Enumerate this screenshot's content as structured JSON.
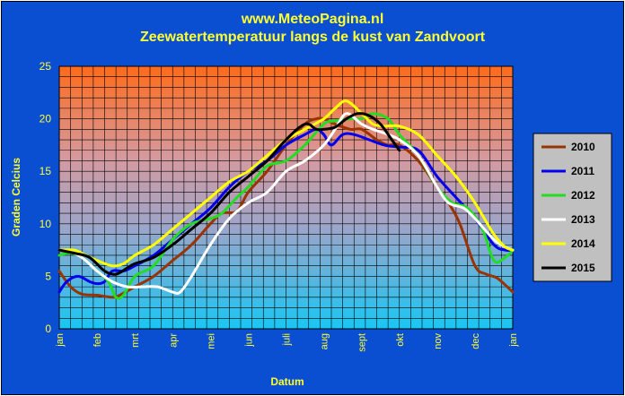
{
  "chart_data": {
    "type": "line",
    "title": "www.MeteoPagina.nl",
    "subtitle": "Zeewatertemperatuur langs de kust van Zandvoort",
    "xlabel": "Datum",
    "ylabel": "Graden Celcius",
    "ylim": [
      0,
      25
    ],
    "yticks": [
      0,
      5,
      10,
      15,
      20,
      25
    ],
    "x_unit": "month (0 = jan, 12 = jan next year)",
    "xlim": [
      0,
      12
    ],
    "month_labels": [
      "jan",
      "feb",
      "mrt",
      "apr",
      "mei",
      "jun",
      "juli",
      "aug",
      "sept",
      "okt",
      "nov",
      "dec",
      "jan"
    ],
    "grid": true,
    "legend_position": "right",
    "series": [
      {
        "name": "2010",
        "color": "#993300",
        "points": [
          [
            0,
            5.5
          ],
          [
            0.3,
            4.0
          ],
          [
            0.6,
            3.3
          ],
          [
            1.0,
            3.2
          ],
          [
            1.4,
            3.0
          ],
          [
            1.6,
            3.2
          ],
          [
            2.0,
            4.0
          ],
          [
            2.5,
            5.0
          ],
          [
            3.0,
            6.5
          ],
          [
            3.5,
            8.0
          ],
          [
            4.0,
            10.0
          ],
          [
            4.3,
            11.0
          ],
          [
            4.7,
            11.2
          ],
          [
            5.0,
            13.0
          ],
          [
            5.5,
            15.0
          ],
          [
            6.0,
            17.5
          ],
          [
            6.5,
            19.5
          ],
          [
            6.8,
            20.0
          ],
          [
            7.0,
            20.0
          ],
          [
            7.3,
            19.5
          ],
          [
            7.7,
            19.0
          ],
          [
            8.0,
            19.0
          ],
          [
            8.4,
            18.0
          ],
          [
            8.7,
            17.5
          ],
          [
            9.0,
            17.5
          ],
          [
            9.5,
            16.0
          ],
          [
            10.0,
            13.5
          ],
          [
            10.3,
            12.0
          ],
          [
            10.6,
            10.0
          ],
          [
            11.0,
            6.0
          ],
          [
            11.3,
            5.2
          ],
          [
            11.6,
            4.8
          ],
          [
            12.0,
            3.5
          ]
        ]
      },
      {
        "name": "2011",
        "color": "#0000ee",
        "points": [
          [
            0,
            3.5
          ],
          [
            0.2,
            4.5
          ],
          [
            0.5,
            5.0
          ],
          [
            0.8,
            4.5
          ],
          [
            1.0,
            4.3
          ],
          [
            1.2,
            4.5
          ],
          [
            1.4,
            5.5
          ],
          [
            1.7,
            5.5
          ],
          [
            2.0,
            6.0
          ],
          [
            2.5,
            7.0
          ],
          [
            3.0,
            8.5
          ],
          [
            3.5,
            10.0
          ],
          [
            4.0,
            11.5
          ],
          [
            4.5,
            13.5
          ],
          [
            5.0,
            15.0
          ],
          [
            5.5,
            16.0
          ],
          [
            6.0,
            17.5
          ],
          [
            6.5,
            18.5
          ],
          [
            6.8,
            19.0
          ],
          [
            7.0,
            18.5
          ],
          [
            7.2,
            17.5
          ],
          [
            7.5,
            18.5
          ],
          [
            7.8,
            18.5
          ],
          [
            8.2,
            18.0
          ],
          [
            8.6,
            17.5
          ],
          [
            9.0,
            17.3
          ],
          [
            9.5,
            17.0
          ],
          [
            10.0,
            14.5
          ],
          [
            10.5,
            12.5
          ],
          [
            11.0,
            10.5
          ],
          [
            11.5,
            8.0
          ],
          [
            11.8,
            7.5
          ],
          [
            12.0,
            7.5
          ]
        ]
      },
      {
        "name": "2012",
        "color": "#22dd22",
        "points": [
          [
            0,
            7.0
          ],
          [
            0.3,
            7.2
          ],
          [
            0.6,
            6.8
          ],
          [
            1.0,
            5.5
          ],
          [
            1.3,
            4.5
          ],
          [
            1.5,
            3.0
          ],
          [
            1.7,
            3.2
          ],
          [
            2.0,
            5.0
          ],
          [
            2.5,
            6.0
          ],
          [
            3.0,
            8.5
          ],
          [
            3.5,
            10.0
          ],
          [
            4.0,
            10.5
          ],
          [
            4.3,
            11.0
          ],
          [
            4.7,
            12.5
          ],
          [
            5.0,
            13.5
          ],
          [
            5.5,
            15.5
          ],
          [
            6.0,
            16.0
          ],
          [
            6.5,
            17.5
          ],
          [
            7.0,
            19.5
          ],
          [
            7.3,
            19.8
          ],
          [
            7.7,
            20.0
          ],
          [
            8.0,
            20.0
          ],
          [
            8.3,
            20.5
          ],
          [
            8.7,
            20.0
          ],
          [
            9.0,
            18.5
          ],
          [
            9.5,
            16.5
          ],
          [
            10.0,
            13.5
          ],
          [
            10.4,
            12.0
          ],
          [
            10.8,
            11.5
          ],
          [
            11.2,
            9.5
          ],
          [
            11.5,
            6.5
          ],
          [
            11.8,
            6.8
          ],
          [
            12.0,
            7.5
          ]
        ]
      },
      {
        "name": "2013",
        "color": "#ffffff",
        "points": [
          [
            0,
            7.5
          ],
          [
            0.4,
            7.2
          ],
          [
            0.7,
            6.5
          ],
          [
            1.0,
            5.5
          ],
          [
            1.4,
            4.5
          ],
          [
            1.8,
            4.0
          ],
          [
            2.2,
            4.0
          ],
          [
            2.6,
            4.0
          ],
          [
            3.0,
            3.5
          ],
          [
            3.2,
            3.5
          ],
          [
            3.5,
            5.0
          ],
          [
            4.0,
            8.0
          ],
          [
            4.5,
            10.5
          ],
          [
            5.0,
            12.0
          ],
          [
            5.5,
            13.0
          ],
          [
            6.0,
            15.0
          ],
          [
            6.5,
            16.0
          ],
          [
            7.0,
            17.5
          ],
          [
            7.3,
            19.0
          ],
          [
            7.6,
            20.5
          ],
          [
            8.0,
            19.5
          ],
          [
            8.3,
            19.0
          ],
          [
            8.7,
            18.5
          ],
          [
            9.0,
            18.0
          ],
          [
            9.5,
            16.5
          ],
          [
            10.0,
            13.5
          ],
          [
            10.3,
            12.0
          ],
          [
            10.7,
            11.5
          ],
          [
            11.0,
            10.5
          ],
          [
            11.5,
            8.5
          ],
          [
            11.8,
            7.8
          ],
          [
            12.0,
            7.5
          ]
        ]
      },
      {
        "name": "2014",
        "color": "#ffff00",
        "points": [
          [
            0,
            7.5
          ],
          [
            0.4,
            7.5
          ],
          [
            0.7,
            7.0
          ],
          [
            1.0,
            6.5
          ],
          [
            1.4,
            6.0
          ],
          [
            1.7,
            6.2
          ],
          [
            2.0,
            7.0
          ],
          [
            2.5,
            8.0
          ],
          [
            3.0,
            9.5
          ],
          [
            3.5,
            11.0
          ],
          [
            4.0,
            12.5
          ],
          [
            4.5,
            14.0
          ],
          [
            5.0,
            15.0
          ],
          [
            5.5,
            16.5
          ],
          [
            6.0,
            18.0
          ],
          [
            6.5,
            19.0
          ],
          [
            7.0,
            20.0
          ],
          [
            7.3,
            21.0
          ],
          [
            7.6,
            21.7
          ],
          [
            8.0,
            20.5
          ],
          [
            8.3,
            19.5
          ],
          [
            8.6,
            19.3
          ],
          [
            9.0,
            19.3
          ],
          [
            9.5,
            18.5
          ],
          [
            10.0,
            16.5
          ],
          [
            10.5,
            14.5
          ],
          [
            11.0,
            12.0
          ],
          [
            11.5,
            9.0
          ],
          [
            11.8,
            7.8
          ],
          [
            12.0,
            7.5
          ]
        ]
      },
      {
        "name": "2015",
        "color": "#000000",
        "points": [
          [
            0,
            7.5
          ],
          [
            0.4,
            7.2
          ],
          [
            0.8,
            6.8
          ],
          [
            1.2,
            5.5
          ],
          [
            1.5,
            5.2
          ],
          [
            1.8,
            5.8
          ],
          [
            2.0,
            6.2
          ],
          [
            2.5,
            6.8
          ],
          [
            3.0,
            8.0
          ],
          [
            3.5,
            9.5
          ],
          [
            4.0,
            11.0
          ],
          [
            4.5,
            13.0
          ],
          [
            5.0,
            14.5
          ],
          [
            5.5,
            16.0
          ],
          [
            6.0,
            18.0
          ],
          [
            6.5,
            19.5
          ],
          [
            6.8,
            19.0
          ],
          [
            7.0,
            19.0
          ],
          [
            7.3,
            19.2
          ],
          [
            7.6,
            20.0
          ],
          [
            7.9,
            20.5
          ],
          [
            8.2,
            20.3
          ],
          [
            8.5,
            19.5
          ],
          [
            8.8,
            18.0
          ],
          [
            9.0,
            17.0
          ]
        ]
      }
    ]
  }
}
